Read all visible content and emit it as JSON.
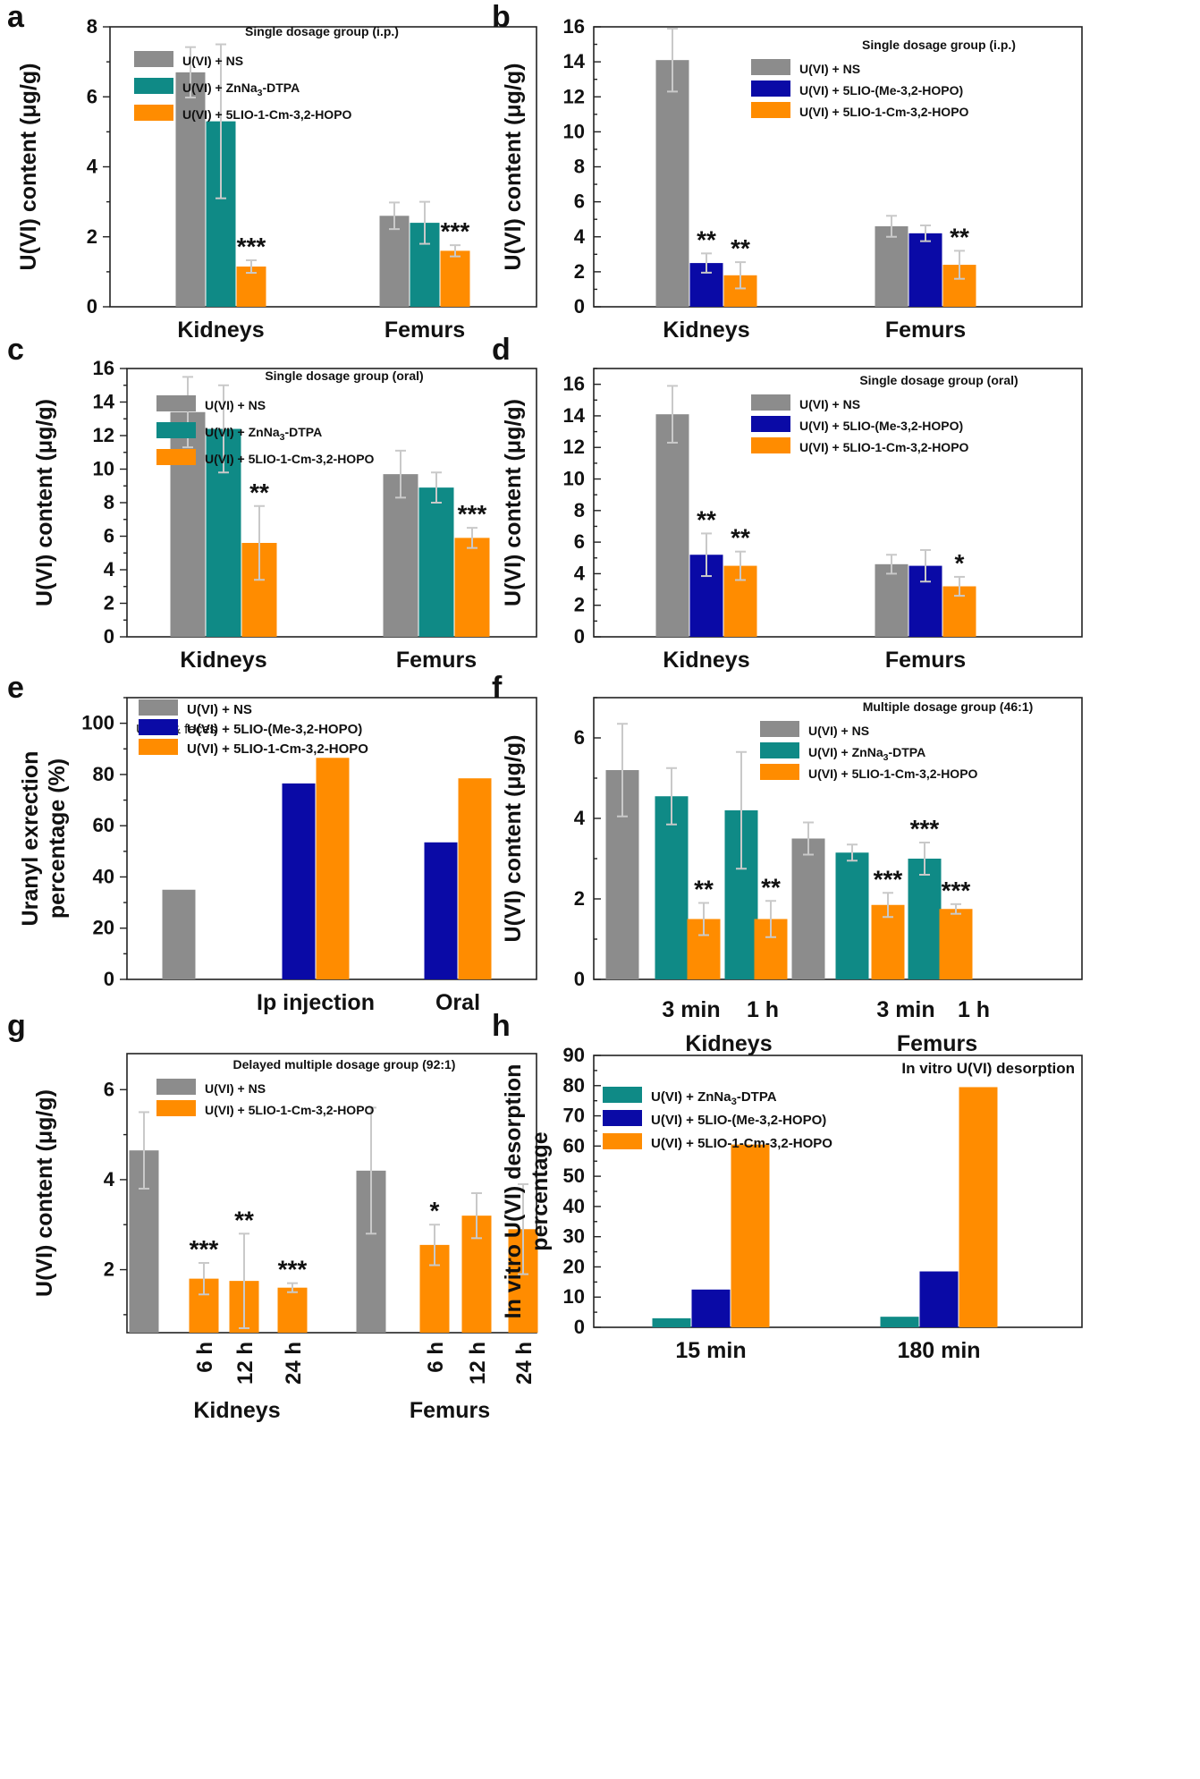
{
  "colors": {
    "gray": "#8c8c8c",
    "teal": "#0f8a86",
    "blue": "#0a0aa6",
    "orange": "#ff8c00",
    "errorbar": "#c9c9c9"
  },
  "chart_data": [
    {
      "id": "a",
      "type": "bar",
      "panel_label": "a",
      "title": "Single dosage group (i.p.)",
      "ylabel": "U(VI) content (μg/g)",
      "xlabel": "",
      "ylim": [
        0,
        8
      ],
      "yticks": [
        0,
        2,
        4,
        6,
        8
      ],
      "grid": false,
      "categories": [
        "Kidneys",
        "Femurs"
      ],
      "series": [
        {
          "name": "U(VI) + NS",
          "color": "gray",
          "values": [
            6.7,
            2.6
          ],
          "errors": [
            0.72,
            0.38
          ]
        },
        {
          "name": "U(VI) + ZnNa3-DTPA",
          "color": "teal",
          "values": [
            5.3,
            2.4
          ],
          "errors": [
            2.2,
            0.6
          ]
        },
        {
          "name": "U(VI) + 5LIO-1-Cm-3,2-HOPO",
          "color": "orange",
          "values": [
            1.15,
            1.6
          ],
          "errors": [
            0.18,
            0.16
          ],
          "annotations": [
            "***",
            "***"
          ]
        }
      ]
    },
    {
      "id": "b",
      "type": "bar",
      "panel_label": "b",
      "title": "Single dosage group (i.p.)",
      "ylabel": "U(VI) content (μg/g)",
      "xlabel": "",
      "ylim": [
        0,
        16
      ],
      "yticks": [
        0,
        2,
        4,
        6,
        8,
        10,
        12,
        14,
        16
      ],
      "grid": false,
      "categories": [
        "Kidneys",
        "Femurs"
      ],
      "series": [
        {
          "name": "U(VI) + NS",
          "color": "gray",
          "values": [
            14.1,
            4.6
          ],
          "errors": [
            1.8,
            0.6
          ]
        },
        {
          "name": "U(VI) + 5LIO-(Me-3,2-HOPO)",
          "color": "blue",
          "values": [
            2.5,
            4.2
          ],
          "errors": [
            0.55,
            0.45
          ],
          "annotations": [
            "**",
            ""
          ]
        },
        {
          "name": "U(VI) + 5LIO-1-Cm-3,2-HOPO",
          "color": "orange",
          "values": [
            1.8,
            2.4
          ],
          "errors": [
            0.75,
            0.8
          ],
          "annotations": [
            "**",
            "**"
          ]
        }
      ]
    },
    {
      "id": "c",
      "type": "bar",
      "panel_label": "c",
      "title": "Single dosage group (oral)",
      "ylabel": "U(VI) content (μg/g)",
      "xlabel": "",
      "ylim": [
        0,
        16
      ],
      "yticks": [
        0,
        2,
        4,
        6,
        8,
        10,
        12,
        14,
        16
      ],
      "grid": false,
      "categories": [
        "Kidneys",
        "Femurs"
      ],
      "series": [
        {
          "name": "U(VI) + NS",
          "color": "gray",
          "values": [
            13.4,
            9.7
          ],
          "errors": [
            2.1,
            1.4
          ]
        },
        {
          "name": "U(VI) + ZnNa3-DTPA",
          "color": "teal",
          "values": [
            12.4,
            8.9
          ],
          "errors": [
            2.6,
            0.9
          ]
        },
        {
          "name": "U(VI) + 5LIO-1-Cm-3,2-HOPO",
          "color": "orange",
          "values": [
            5.6,
            5.9
          ],
          "errors": [
            2.2,
            0.6
          ],
          "annotations": [
            "**",
            "***"
          ]
        }
      ]
    },
    {
      "id": "d",
      "type": "bar",
      "panel_label": "d",
      "title": "Single dosage group (oral)",
      "ylabel": "U(VI) content (μg/g)",
      "xlabel": "",
      "ylim": [
        0,
        17
      ],
      "yticks": [
        0,
        2,
        4,
        6,
        8,
        10,
        12,
        14,
        16
      ],
      "grid": false,
      "categories": [
        "Kidneys",
        "Femurs"
      ],
      "series": [
        {
          "name": "U(VI) + NS",
          "color": "gray",
          "values": [
            14.1,
            4.6
          ],
          "errors": [
            1.8,
            0.6
          ]
        },
        {
          "name": "U(VI) + 5LIO-(Me-3,2-HOPO)",
          "color": "blue",
          "values": [
            5.2,
            4.5
          ],
          "errors": [
            1.35,
            1.0
          ],
          "annotations": [
            "**",
            ""
          ]
        },
        {
          "name": "U(VI) + 5LIO-1-Cm-3,2-HOPO",
          "color": "orange",
          "values": [
            4.5,
            3.2
          ],
          "errors": [
            0.9,
            0.6
          ],
          "annotations": [
            "**",
            "*"
          ]
        }
      ]
    },
    {
      "id": "e",
      "type": "bar",
      "panel_label": "e",
      "title": "Urine & feces",
      "ylabel": "Uranyl exrection percentage (%)",
      "ylabel_lines": [
        "Uranyl exrection",
        "percentage (%)"
      ],
      "xlabel": "",
      "ylim": [
        0,
        110
      ],
      "yticks": [
        0,
        20,
        40,
        60,
        80,
        100
      ],
      "grid": false,
      "categories": [
        "",
        "Ip injection",
        "Oral"
      ],
      "series": [
        {
          "name": "U(VI) + NS",
          "color": "gray",
          "values": [
            35,
            null,
            null
          ]
        },
        {
          "name": "U(VI) + 5LIO-(Me-3,2-HOPO)",
          "color": "blue",
          "values": [
            null,
            76.5,
            53.5
          ]
        },
        {
          "name": "U(VI) + 5LIO-1-Cm-3,2-HOPO",
          "color": "orange",
          "values": [
            null,
            86.5,
            78.5
          ]
        }
      ]
    },
    {
      "id": "f",
      "type": "bar",
      "panel_label": "f",
      "title": "Multiple dosage group (46:1)",
      "ylabel": "U(VI) content (μg/g)",
      "xlabel": "",
      "ylim": [
        0,
        7
      ],
      "yticks": [
        0,
        2,
        4,
        6
      ],
      "grid": false,
      "legend": [
        {
          "name": "U(VI) + NS",
          "color": "gray"
        },
        {
          "name": "U(VI) + ZnNa3-DTPA",
          "color": "teal"
        },
        {
          "name": "U(VI) + 5LIO-1-Cm-3,2-HOPO",
          "color": "orange"
        }
      ],
      "groups": [
        "Kidneys",
        "Femurs"
      ],
      "ticks": [
        "3 min",
        "1 h",
        "3 min",
        "1 h"
      ],
      "bars": [
        {
          "color": "gray",
          "value": 5.2,
          "error": 1.15
        },
        {
          "color": "teal",
          "value": 4.55,
          "error": 0.7
        },
        {
          "color": "orange",
          "value": 1.5,
          "error": 0.4,
          "annotation": "**"
        },
        {
          "color": "teal",
          "value": 4.2,
          "error": 1.45
        },
        {
          "color": "orange",
          "value": 1.5,
          "error": 0.45,
          "annotation": "**"
        },
        {
          "color": "gray",
          "value": 3.5,
          "error": 0.4
        },
        {
          "color": "teal",
          "value": 3.15,
          "error": 0.2
        },
        {
          "color": "orange",
          "value": 1.85,
          "error": 0.3,
          "annotation": "***"
        },
        {
          "color": "teal",
          "value": 3.0,
          "error": 0.4,
          "annotation": "***"
        },
        {
          "color": "orange",
          "value": 1.75,
          "error": 0.12,
          "annotation": "***"
        }
      ]
    },
    {
      "id": "g",
      "type": "bar",
      "panel_label": "g",
      "title": "Delayed multiple dosage group (92:1)",
      "ylabel": "U(VI) content (μg/g)",
      "xlabel": "",
      "ylim": [
        0.6,
        6.8
      ],
      "yticks": [
        2,
        4,
        6
      ],
      "grid": false,
      "legend": [
        {
          "name": "U(VI) + NS",
          "color": "gray"
        },
        {
          "name": "U(VI) + 5LIO-1-Cm-3,2-HOPO",
          "color": "orange"
        }
      ],
      "groups": [
        "Kidneys",
        "Femurs"
      ],
      "ticks": [
        "6 h",
        "12 h",
        "24 h",
        "6 h",
        "12 h",
        "24 h"
      ],
      "bars": [
        {
          "color": "gray",
          "value": 4.65,
          "error": 0.85
        },
        {
          "color": "orange",
          "value": 1.8,
          "error": 0.35,
          "annotation": "***"
        },
        {
          "color": "orange",
          "value": 1.75,
          "error": 1.05,
          "annotation": "**"
        },
        {
          "color": "orange",
          "value": 1.6,
          "error": 0.1,
          "annotation": "***"
        },
        {
          "color": "gray",
          "value": 4.2,
          "error": 1.4
        },
        {
          "color": "orange",
          "value": 2.55,
          "error": 0.45,
          "annotation": "*"
        },
        {
          "color": "orange",
          "value": 3.2,
          "error": 0.5
        },
        {
          "color": "orange",
          "value": 2.9,
          "error": 1.0
        }
      ]
    },
    {
      "id": "h",
      "type": "bar",
      "panel_label": "h",
      "title": "In vitro U(VI) desorption",
      "ylabel": "In vitro U(VI) desorption percentage",
      "ylabel_lines": [
        "In vitro U(VI) desorption",
        "percentage"
      ],
      "xlabel": "",
      "ylim": [
        0,
        90
      ],
      "yticks": [
        0,
        10,
        20,
        30,
        40,
        50,
        60,
        70,
        80,
        90
      ],
      "grid": false,
      "categories": [
        "15 min",
        "180 min"
      ],
      "series": [
        {
          "name": "U(VI) + ZnNa3-DTPA",
          "color": "teal",
          "values": [
            3,
            3.5
          ]
        },
        {
          "name": "U(VI) + 5LIO-(Me-3,2-HOPO)",
          "color": "blue",
          "values": [
            12.5,
            18.5
          ]
        },
        {
          "name": "U(VI) + 5LIO-1-Cm-3,2-HOPO",
          "color": "orange",
          "values": [
            60.5,
            79.5
          ]
        }
      ]
    }
  ]
}
